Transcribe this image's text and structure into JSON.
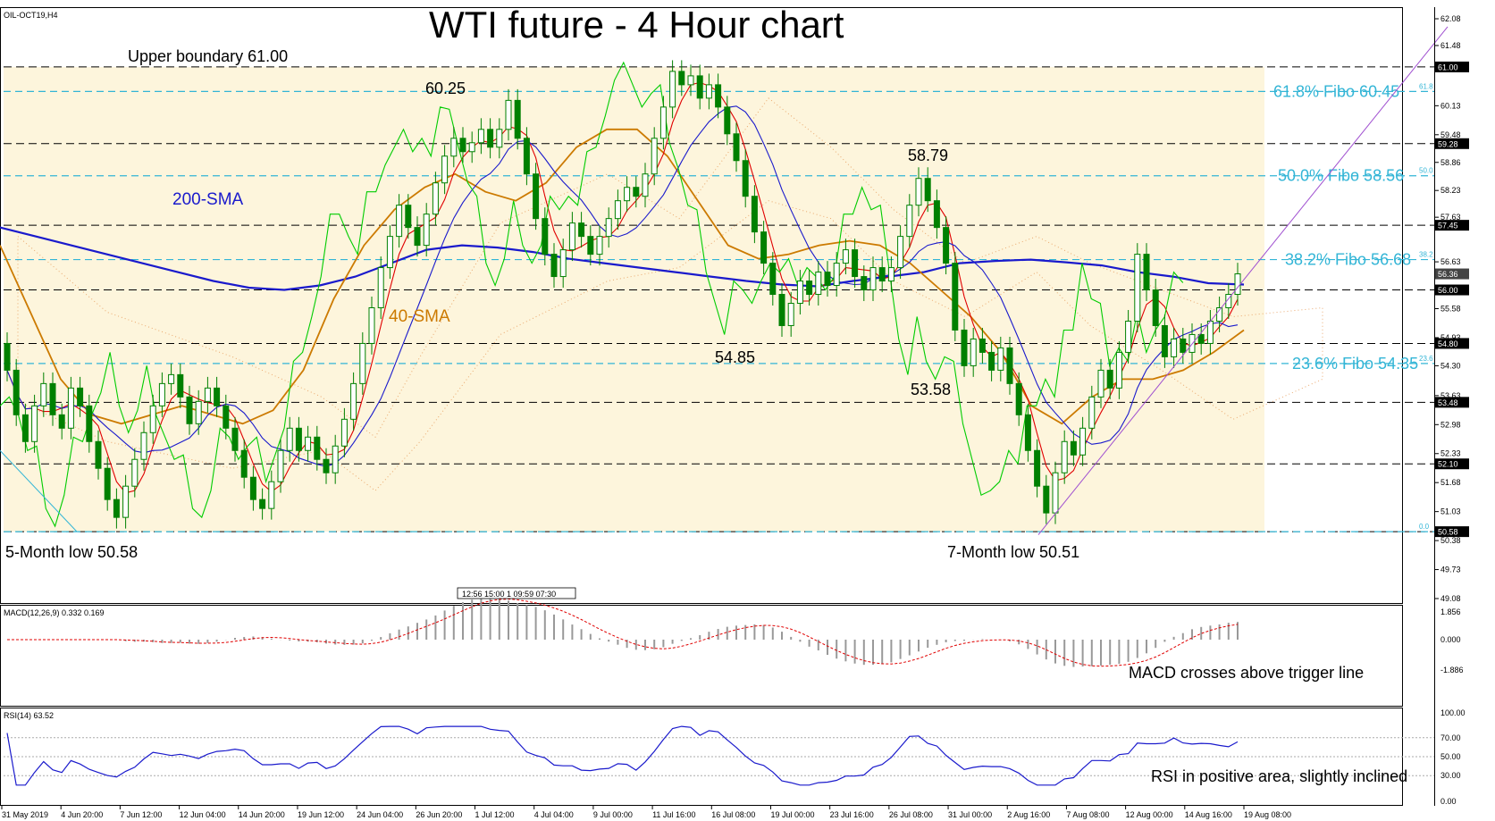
{
  "window": {
    "symbol_label": "OIL-OCT19,H4"
  },
  "title": "WTI future - 4 Hour chart",
  "annotations": {
    "upper_boundary": "Upper boundary 61.00",
    "sma200": "200-SMA",
    "sma40": "40-SMA",
    "low5m": "5-Month low 50.58",
    "low7m": "7-Month low 50.51",
    "peak1": "60.25",
    "peak2": "58.79",
    "trough1": "54.85",
    "trough2": "53.58",
    "macd_note": "MACD crosses above trigger line",
    "rsi_note": "RSI in positive area, slightly inclined"
  },
  "fibo": [
    {
      "label": "61.8% Fibo 60.45",
      "value": 60.45,
      "tag": "61.8"
    },
    {
      "label": "50.0% Fibo 58.56",
      "value": 58.56,
      "tag": "50.0"
    },
    {
      "label": "38.2% Fibo 56.68",
      "value": 56.68,
      "tag": "38.2"
    },
    {
      "label": "23.6% Fibo 54.35",
      "value": 54.35,
      "tag": "23.6"
    },
    {
      "label": "",
      "value": 50.58,
      "tag": "0.0"
    }
  ],
  "levels": [
    {
      "value": 61.0,
      "label": "61.00"
    },
    {
      "value": 59.28,
      "label": "59.28"
    },
    {
      "value": 57.45,
      "label": "57.45"
    },
    {
      "value": 56.0,
      "label": "56.00"
    },
    {
      "value": 54.8,
      "label": "54.80"
    },
    {
      "value": 53.48,
      "label": "53.48"
    },
    {
      "value": 52.1,
      "label": "52.10"
    },
    {
      "value": 50.58,
      "label": "50.58"
    }
  ],
  "current_price": {
    "value": 56.36,
    "label": "56.36"
  },
  "price_axis": {
    "ticks": [
      "62.08",
      "61.48",
      "60.13",
      "59.48",
      "58.86",
      "58.23",
      "57.63",
      "56.63",
      "55.58",
      "54.93",
      "54.30",
      "53.63",
      "52.98",
      "52.33",
      "51.68",
      "51.03",
      "50.38",
      "49.73",
      "49.08"
    ],
    "min": 49.08,
    "max": 62.1
  },
  "time_axis": [
    "31 May 2019",
    "4 Jun 20:00",
    "7 Jun 12:00",
    "12 Jun 04:00",
    "14 Jun 20:00",
    "19 Jun 12:00",
    "24 Jun 04:00",
    "26 Jun 20:00",
    "1 Jul 12:00",
    "4 Jul 04:00",
    "9 Jul 00:00",
    "11 Jul 16:00",
    "16 Jul 08:00",
    "19 Jul 00:00",
    "23 Jul 16:00",
    "26 Jul 08:00",
    "31 Jul 00:00",
    "2 Aug 16:00",
    "7 Aug 08:00",
    "12 Aug 00:00",
    "14 Aug 16:00",
    "19 Aug 08:00"
  ],
  "macd": {
    "header": "MACD(12,26,9) 0.332 0.169",
    "ticks": [
      "1.856",
      "0.000",
      "-1.886"
    ]
  },
  "rsi": {
    "header": "RSI(14) 63.52",
    "ticks": [
      "100.00",
      "70.00",
      "50.00",
      "30.00",
      "0.00"
    ]
  },
  "scroll_box": "12:56 15:00 1 09:59 07:30",
  "colors": {
    "candle": "#008000",
    "sma200": "#1a1acc",
    "sma40": "#cc7a00",
    "fibo": "#33b5d6",
    "kijun": "#1a1acc",
    "tenkan": "#e00000",
    "chikou": "#00cc00",
    "zone": "#fdf5dc",
    "trendline": "#a050d0"
  },
  "chart_data": {
    "type": "line",
    "title": "WTI future - 4 Hour chart",
    "xlabel": "",
    "ylabel": "",
    "ylim": [
      49.08,
      62.1
    ],
    "candles": [
      [
        54.8,
        54.2
      ],
      [
        54.2,
        53.2
      ],
      [
        53.2,
        52.6
      ],
      [
        52.6,
        53.4
      ],
      [
        53.4,
        53.9
      ],
      [
        53.9,
        53.2
      ],
      [
        53.2,
        52.9
      ],
      [
        52.9,
        53.8
      ],
      [
        53.8,
        53.4
      ],
      [
        53.4,
        52.6
      ],
      [
        52.6,
        52.0
      ],
      [
        52.0,
        51.3
      ],
      [
        51.3,
        50.9
      ],
      [
        50.9,
        51.6
      ],
      [
        51.6,
        52.2
      ],
      [
        52.2,
        52.8
      ],
      [
        52.8,
        53.4
      ],
      [
        53.4,
        53.9
      ],
      [
        53.9,
        54.1
      ],
      [
        54.1,
        53.6
      ],
      [
        53.6,
        53.0
      ],
      [
        53.0,
        53.5
      ],
      [
        53.5,
        53.8
      ],
      [
        53.8,
        53.4
      ],
      [
        53.4,
        52.9
      ],
      [
        52.9,
        52.4
      ],
      [
        52.4,
        51.8
      ],
      [
        51.8,
        51.3
      ],
      [
        51.3,
        51.1
      ],
      [
        51.1,
        51.7
      ],
      [
        51.7,
        52.4
      ],
      [
        52.4,
        52.9
      ],
      [
        52.9,
        52.4
      ],
      [
        52.4,
        52.7
      ],
      [
        52.7,
        52.2
      ],
      [
        52.2,
        51.9
      ],
      [
        51.9,
        52.5
      ],
      [
        52.5,
        53.1
      ],
      [
        53.1,
        53.9
      ],
      [
        53.9,
        54.8
      ],
      [
        54.8,
        55.6
      ],
      [
        55.6,
        56.5
      ],
      [
        56.5,
        57.2
      ],
      [
        57.2,
        57.9
      ],
      [
        57.9,
        57.4
      ],
      [
        57.4,
        57.0
      ],
      [
        57.0,
        57.7
      ],
      [
        57.7,
        58.4
      ],
      [
        58.4,
        59.0
      ],
      [
        59.0,
        59.4
      ],
      [
        59.4,
        59.1
      ],
      [
        59.1,
        59.3
      ],
      [
        59.3,
        59.6
      ],
      [
        59.6,
        59.2
      ],
      [
        59.2,
        59.6
      ],
      [
        59.6,
        60.25
      ],
      [
        60.25,
        59.4
      ],
      [
        59.4,
        58.6
      ],
      [
        58.6,
        57.6
      ],
      [
        57.6,
        56.8
      ],
      [
        56.8,
        56.3
      ],
      [
        56.3,
        56.9
      ],
      [
        56.9,
        57.5
      ],
      [
        57.5,
        57.2
      ],
      [
        57.2,
        56.8
      ],
      [
        56.8,
        57.2
      ],
      [
        57.2,
        57.6
      ],
      [
        57.6,
        58.0
      ],
      [
        58.0,
        58.3
      ],
      [
        58.3,
        58.1
      ],
      [
        58.1,
        58.6
      ],
      [
        58.6,
        59.4
      ],
      [
        59.4,
        60.1
      ],
      [
        60.1,
        60.9
      ],
      [
        60.9,
        60.6
      ],
      [
        60.6,
        60.8
      ],
      [
        60.8,
        60.3
      ],
      [
        60.3,
        60.6
      ],
      [
        60.6,
        60.1
      ],
      [
        60.1,
        59.5
      ],
      [
        59.5,
        58.9
      ],
      [
        58.9,
        58.1
      ],
      [
        58.1,
        57.3
      ],
      [
        57.3,
        56.6
      ],
      [
        56.6,
        55.9
      ],
      [
        55.9,
        55.2
      ],
      [
        55.2,
        55.7
      ],
      [
        55.7,
        56.2
      ],
      [
        56.2,
        55.9
      ],
      [
        55.9,
        56.4
      ],
      [
        56.4,
        56.1
      ],
      [
        56.1,
        56.6
      ],
      [
        56.6,
        56.9
      ],
      [
        56.9,
        56.3
      ],
      [
        56.3,
        56.0
      ],
      [
        56.0,
        56.5
      ],
      [
        56.5,
        56.2
      ],
      [
        56.2,
        56.5
      ],
      [
        56.5,
        57.2
      ],
      [
        57.2,
        57.9
      ],
      [
        57.9,
        58.5
      ],
      [
        58.5,
        58.0
      ],
      [
        58.0,
        57.4
      ],
      [
        57.4,
        56.6
      ],
      [
        56.6,
        55.1
      ],
      [
        55.1,
        54.3
      ],
      [
        54.3,
        54.9
      ],
      [
        54.9,
        54.6
      ],
      [
        54.6,
        54.2
      ],
      [
        54.2,
        54.7
      ],
      [
        54.7,
        53.9
      ],
      [
        53.9,
        53.2
      ],
      [
        53.2,
        52.4
      ],
      [
        52.4,
        51.6
      ],
      [
        51.6,
        51.0
      ],
      [
        51.0,
        51.9
      ],
      [
        51.9,
        52.6
      ],
      [
        52.6,
        52.3
      ],
      [
        52.3,
        52.9
      ],
      [
        52.9,
        53.6
      ],
      [
        53.6,
        54.2
      ],
      [
        54.2,
        53.8
      ],
      [
        53.8,
        54.6
      ],
      [
        54.6,
        55.3
      ],
      [
        55.3,
        56.8
      ],
      [
        56.8,
        56.0
      ],
      [
        56.0,
        55.2
      ],
      [
        55.2,
        54.5
      ],
      [
        54.5,
        54.9
      ],
      [
        54.9,
        54.6
      ],
      [
        54.6,
        55.0
      ],
      [
        55.0,
        54.8
      ],
      [
        54.8,
        55.3
      ],
      [
        55.3,
        55.6
      ],
      [
        55.6,
        55.9
      ],
      [
        55.9,
        56.36
      ]
    ],
    "series": [
      {
        "values": [
          57.4,
          57.2,
          57.0,
          56.8,
          56.6,
          56.4,
          56.2,
          56.05,
          56.0,
          56.1,
          56.3,
          56.6,
          56.9,
          57.0,
          56.95,
          56.85,
          56.7,
          56.6,
          56.5,
          56.4,
          56.3,
          56.2,
          56.12,
          56.08,
          56.2,
          56.3,
          56.4,
          56.6,
          56.65,
          56.68,
          56.62,
          56.55,
          56.4,
          56.3,
          56.15,
          56.12
        ]
      },
      {
        "values": [
          57.0,
          55.5,
          54.0,
          53.2,
          53.0,
          53.2,
          53.4,
          53.2,
          53.0,
          53.3,
          54.2,
          55.8,
          57.0,
          57.8,
          58.3,
          58.6,
          58.2,
          58.0,
          58.4,
          59.2,
          59.6,
          59.6,
          59.0,
          58.0,
          57.0,
          56.7,
          56.8,
          57.0,
          57.1,
          57.0,
          56.6,
          56.0,
          55.4,
          54.6,
          53.4,
          53.0,
          53.6,
          54.0,
          54.0,
          54.2,
          54.6,
          55.1
        ]
      }
    ]
  }
}
